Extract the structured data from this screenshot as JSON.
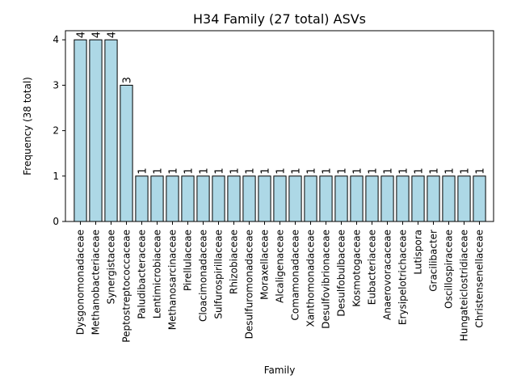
{
  "chart_data": {
    "type": "bar",
    "title": "H34 Family (27 total) ASVs",
    "xlabel": "Family",
    "ylabel": "Frequency (38 total)",
    "ylim": [
      0,
      4.2
    ],
    "yticks": [
      "0",
      "1",
      "2",
      "3",
      "4"
    ],
    "grid": false,
    "legend": "none",
    "bar_color": "#add8e6",
    "edge_color": "#000000",
    "categories": [
      "Dysgonomonadaceae",
      "Methanobacteriaceae",
      "Synergistaceae",
      "Peptostreptococcaceae",
      "Paludibacteraceae",
      "Lentimicrobiaceae",
      "Methanosarcinaceae",
      "Pirellulaceae",
      "Cloacimonadaceae",
      "Sulfurospirillaceae",
      "Rhizobiaceae",
      "Desulfuromonadaceae",
      "Moraxellaceae",
      "Alcaligenaceae",
      "Comamonadaceae",
      "Xanthomonadaceae",
      "Desulfovibrionaceae",
      "Desulfobulbaceae",
      "Kosmotogaceae",
      "Eubacteriaceae",
      "Anaerovoracaceae",
      "Erysipelotrichaceae",
      "Lutispora",
      "Gracilibacter",
      "Oscillospiraceae",
      "Hungateiclostridiaceae",
      "Christensenellaceae"
    ],
    "values": [
      4,
      4,
      4,
      3,
      1,
      1,
      1,
      1,
      1,
      1,
      1,
      1,
      1,
      1,
      1,
      1,
      1,
      1,
      1,
      1,
      1,
      1,
      1,
      1,
      1,
      1,
      1
    ],
    "data_labels": [
      "4",
      "4",
      "4",
      "3",
      "1",
      "1",
      "1",
      "1",
      "1",
      "1",
      "1",
      "1",
      "1",
      "1",
      "1",
      "1",
      "1",
      "1",
      "1",
      "1",
      "1",
      "1",
      "1",
      "1",
      "1",
      "1",
      "1"
    ]
  }
}
